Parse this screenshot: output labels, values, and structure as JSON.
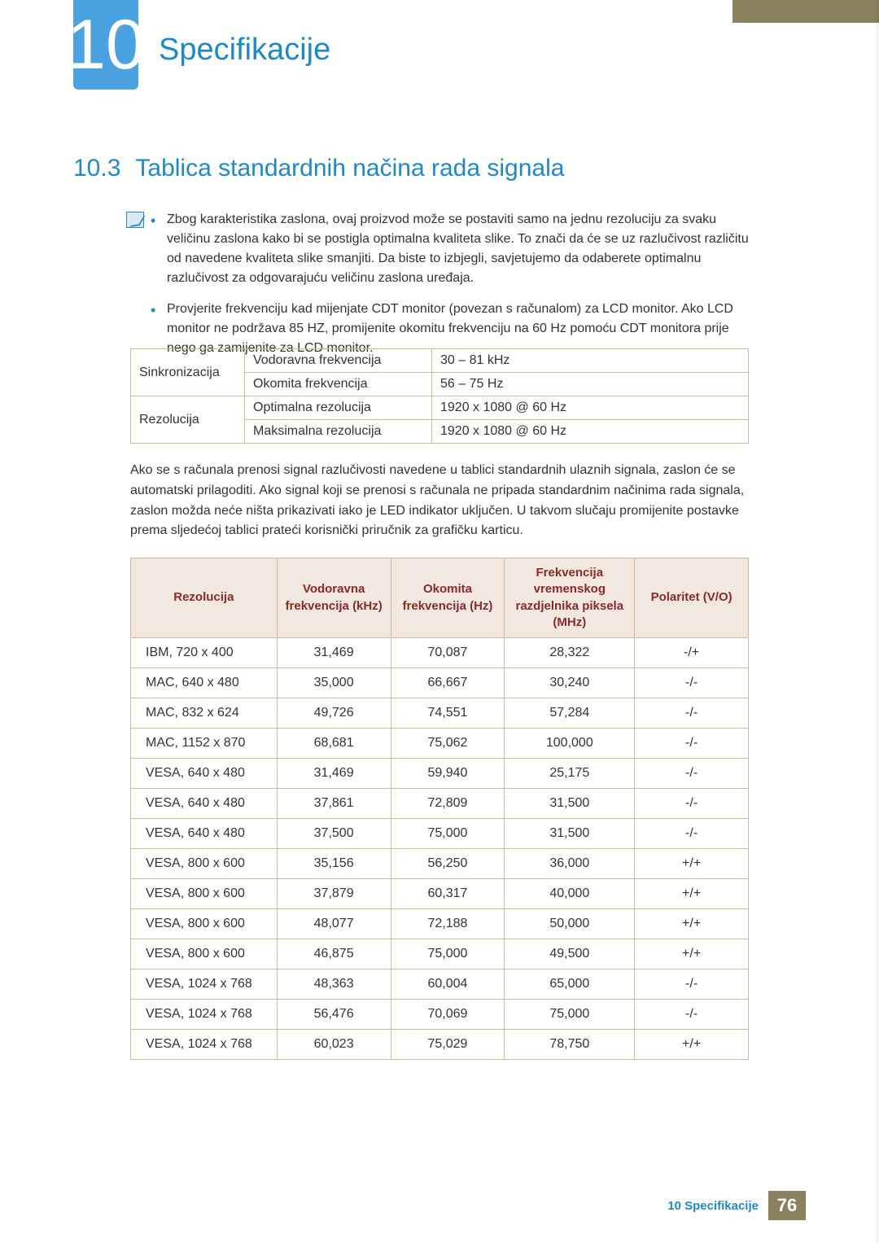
{
  "chapter": {
    "number": "10",
    "title": "Specifikacije"
  },
  "section": {
    "number": "10.3",
    "title": "Tablica standardnih načina rada signala"
  },
  "notes": [
    "Zbog karakteristika zaslona, ovaj proizvod može se postaviti samo na jednu rezoluciju za svaku veličinu zaslona kako bi se postigla optimalna kvaliteta slike. To znači da će se uz razlučivost različitu od navedene kvaliteta slike smanjiti. Da biste to izbjegli, savjetujemo da odaberete optimalnu razlučivost za odgovarajuću veličinu zaslona uređaja.",
    "Provjerite frekvenciju kad mijenjate CDT monitor (povezan s računalom) za LCD monitor. Ako LCD monitor ne podržava 85 HZ, promijenite okomitu frekvenciju na 60 Hz pomoću CDT monitora prije nego ga zamijenite za LCD monitor."
  ],
  "sync_table": {
    "rows": [
      {
        "group": "Sinkronizacija",
        "label": "Vodoravna frekvencija",
        "value": "30 – 81 kHz"
      },
      {
        "group": "",
        "label": "Okomita frekvencija",
        "value": "56 – 75 Hz"
      },
      {
        "group": "Rezolucija",
        "label": "Optimalna rezolucija",
        "value": "1920 x 1080 @ 60 Hz"
      },
      {
        "group": "",
        "label": "Maksimalna rezolucija",
        "value": "1920 x 1080 @ 60 Hz"
      }
    ]
  },
  "paragraph": "Ako se s računala prenosi signal razlučivosti navedene u tablici standardnih ulaznih signala, zaslon će se automatski prilagoditi. Ako signal koji se prenosi s računala ne pripada standardnim načinima rada signala, zaslon možda neće ništa prikazivati iako je LED indikator uključen. U takvom slučaju promijenite postavke prema sljedećoj tablici prateći korisnički priručnik za grafičku karticu.",
  "signal_headers": {
    "c0": "Rezolucija",
    "c1": "Vodoravna frekvencija (kHz)",
    "c2": "Okomita frekvencija (Hz)",
    "c3": "Frekvencija vremenskog razdjelnika piksela (MHz)",
    "c4": "Polaritet (V/O)"
  },
  "signal_rows": [
    [
      "IBM, 720 x 400",
      "31,469",
      "70,087",
      "28,322",
      "-/+"
    ],
    [
      "MAC, 640 x 480",
      "35,000",
      "66,667",
      "30,240",
      "-/-"
    ],
    [
      "MAC, 832 x 624",
      "49,726",
      "74,551",
      "57,284",
      "-/-"
    ],
    [
      "MAC, 1152 x 870",
      "68,681",
      "75,062",
      "100,000",
      "-/-"
    ],
    [
      "VESA, 640 x 480",
      "31,469",
      "59,940",
      "25,175",
      "-/-"
    ],
    [
      "VESA, 640 x 480",
      "37,861",
      "72,809",
      "31,500",
      "-/-"
    ],
    [
      "VESA, 640 x 480",
      "37,500",
      "75,000",
      "31,500",
      "-/-"
    ],
    [
      "VESA, 800 x 600",
      "35,156",
      "56,250",
      "36,000",
      "+/+"
    ],
    [
      "VESA, 800 x 600",
      "37,879",
      "60,317",
      "40,000",
      "+/+"
    ],
    [
      "VESA, 800 x 600",
      "48,077",
      "72,188",
      "50,000",
      "+/+"
    ],
    [
      "VESA, 800 x 600",
      "46,875",
      "75,000",
      "49,500",
      "+/+"
    ],
    [
      "VESA, 1024 x 768",
      "48,363",
      "60,004",
      "65,000",
      "-/-"
    ],
    [
      "VESA, 1024 x 768",
      "56,476",
      "70,069",
      "75,000",
      "-/-"
    ],
    [
      "VESA, 1024 x 768",
      "60,023",
      "75,029",
      "78,750",
      "+/+"
    ]
  ],
  "footer": {
    "label": "10 Specifikacije",
    "page": "76"
  },
  "colors": {
    "accent": "#1e89c8",
    "header_bg": "#f3e8e0",
    "header_text": "#8a2a2a",
    "border": "#c9bd9a",
    "strip": "#8a825e"
  }
}
